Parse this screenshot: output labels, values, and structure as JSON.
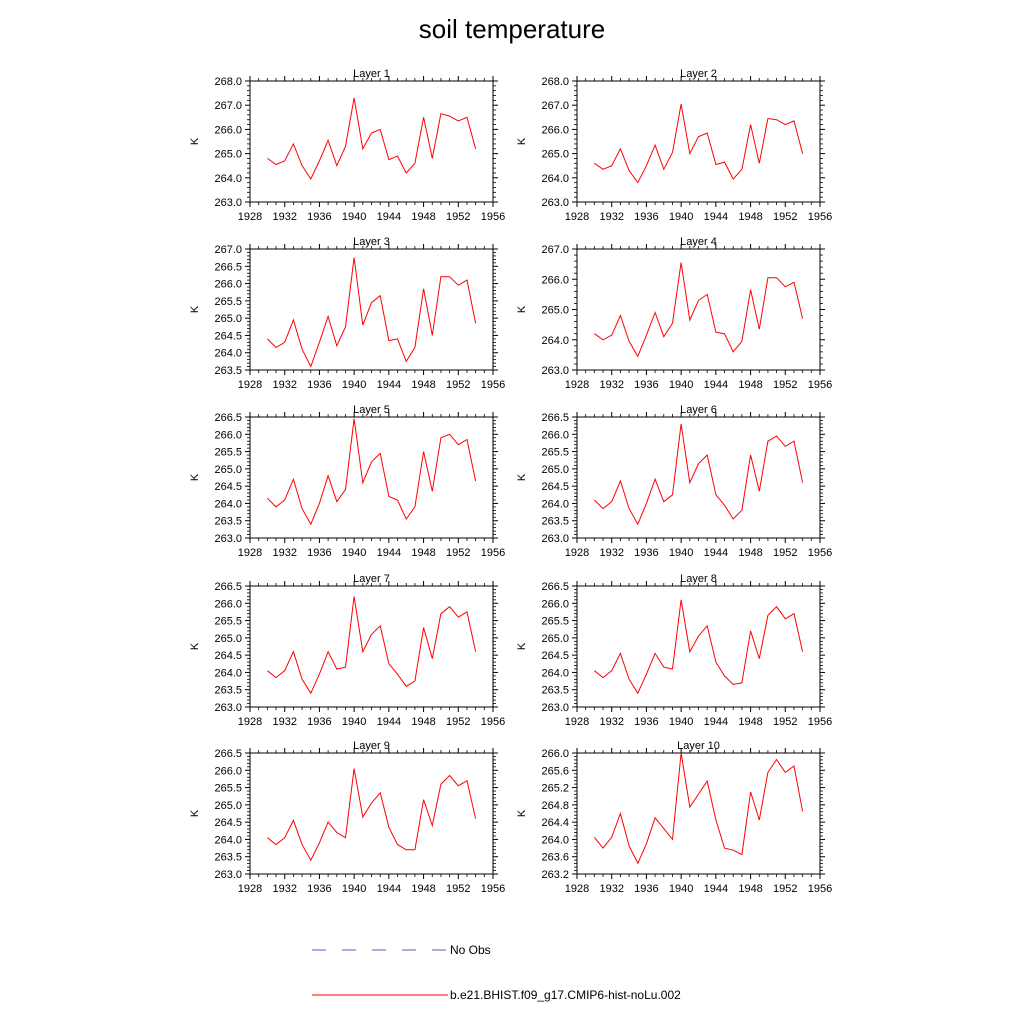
{
  "title": "soil temperature",
  "chart_data": [
    {
      "type": "line",
      "title": "Layer 1",
      "ylabel": "K",
      "xlim": [
        1928,
        1956
      ],
      "ylim": [
        263.0,
        268.0
      ],
      "x_ticks": [
        1928,
        1932,
        1936,
        1940,
        1944,
        1948,
        1952,
        1956
      ],
      "y_ticks": [
        "263.0",
        "264.0",
        "265.0",
        "266.0",
        "267.0",
        "268.0"
      ],
      "series": [
        {
          "name": "b.e21.BHIST.f09_g17.CMIP6-hist-noLu.002",
          "color": "#ff0000",
          "x": [
            1930,
            1931,
            1932,
            1933,
            1934,
            1935,
            1936,
            1937,
            1938,
            1939,
            1940,
            1941,
            1942,
            1943,
            1944,
            1945,
            1946,
            1947,
            1948,
            1949,
            1950,
            1951,
            1952,
            1953,
            1954
          ],
          "y": [
            264.8,
            264.55,
            264.7,
            265.4,
            264.5,
            263.95,
            264.7,
            265.55,
            264.5,
            265.3,
            267.3,
            265.2,
            265.85,
            266.0,
            264.75,
            264.9,
            264.2,
            264.6,
            266.5,
            264.8,
            266.65,
            266.55,
            266.35,
            266.5,
            265.2
          ]
        }
      ]
    },
    {
      "type": "line",
      "title": "Layer 2",
      "ylabel": "K",
      "xlim": [
        1928,
        1956
      ],
      "ylim": [
        263.0,
        268.0
      ],
      "x_ticks": [
        1928,
        1932,
        1936,
        1940,
        1944,
        1948,
        1952,
        1956
      ],
      "y_ticks": [
        "263.0",
        "264.0",
        "265.0",
        "266.0",
        "267.0",
        "268.0"
      ],
      "series": [
        {
          "name": "b.e21.BHIST.f09_g17.CMIP6-hist-noLu.002",
          "color": "#ff0000",
          "x": [
            1930,
            1931,
            1932,
            1933,
            1934,
            1935,
            1936,
            1937,
            1938,
            1939,
            1940,
            1941,
            1942,
            1943,
            1944,
            1945,
            1946,
            1947,
            1948,
            1949,
            1950,
            1951,
            1952,
            1953,
            1954
          ],
          "y": [
            264.6,
            264.35,
            264.5,
            265.2,
            264.3,
            263.8,
            264.5,
            265.35,
            264.35,
            265.05,
            267.05,
            265.0,
            265.7,
            265.85,
            264.55,
            264.65,
            263.95,
            264.35,
            266.2,
            264.6,
            266.45,
            266.4,
            266.2,
            266.35,
            265.0
          ]
        }
      ]
    },
    {
      "type": "line",
      "title": "Layer 3",
      "ylabel": "K",
      "xlim": [
        1928,
        1956
      ],
      "ylim": [
        263.5,
        267.0
      ],
      "x_ticks": [
        1928,
        1932,
        1936,
        1940,
        1944,
        1948,
        1952,
        1956
      ],
      "y_ticks": [
        "263.5",
        "264.0",
        "264.5",
        "265.0",
        "265.5",
        "266.0",
        "266.5",
        "267.0"
      ],
      "series": [
        {
          "name": "b.e21.BHIST.f09_g17.CMIP6-hist-noLu.002",
          "color": "#ff0000",
          "x": [
            1930,
            1931,
            1932,
            1933,
            1934,
            1935,
            1936,
            1937,
            1938,
            1939,
            1940,
            1941,
            1942,
            1943,
            1944,
            1945,
            1946,
            1947,
            1948,
            1949,
            1950,
            1951,
            1952,
            1953,
            1954
          ],
          "y": [
            264.4,
            264.15,
            264.3,
            264.95,
            264.1,
            263.6,
            264.3,
            265.05,
            264.2,
            264.75,
            266.75,
            264.8,
            265.45,
            265.65,
            264.35,
            264.4,
            263.75,
            264.15,
            265.85,
            264.5,
            266.2,
            266.2,
            265.95,
            266.1,
            264.85
          ]
        }
      ]
    },
    {
      "type": "line",
      "title": "Layer 4",
      "ylabel": "K",
      "xlim": [
        1928,
        1956
      ],
      "ylim": [
        263.0,
        267.0
      ],
      "x_ticks": [
        1928,
        1932,
        1936,
        1940,
        1944,
        1948,
        1952,
        1956
      ],
      "y_ticks": [
        "263.0",
        "264.0",
        "265.0",
        "266.0",
        "267.0"
      ],
      "series": [
        {
          "name": "b.e21.BHIST.f09_g17.CMIP6-hist-noLu.002",
          "color": "#ff0000",
          "x": [
            1930,
            1931,
            1932,
            1933,
            1934,
            1935,
            1936,
            1937,
            1938,
            1939,
            1940,
            1941,
            1942,
            1943,
            1944,
            1945,
            1946,
            1947,
            1948,
            1949,
            1950,
            1951,
            1952,
            1953,
            1954
          ],
          "y": [
            264.2,
            264.0,
            264.15,
            264.8,
            263.95,
            263.45,
            264.15,
            264.9,
            264.1,
            264.55,
            266.55,
            264.65,
            265.3,
            265.5,
            264.25,
            264.2,
            263.6,
            263.95,
            265.65,
            264.35,
            266.05,
            266.05,
            265.75,
            265.9,
            264.7
          ]
        }
      ]
    },
    {
      "type": "line",
      "title": "Layer 5",
      "ylabel": "K",
      "xlim": [
        1928,
        1956
      ],
      "ylim": [
        263.0,
        266.5
      ],
      "x_ticks": [
        1928,
        1932,
        1936,
        1940,
        1944,
        1948,
        1952,
        1956
      ],
      "y_ticks": [
        "263.0",
        "263.5",
        "264.0",
        "264.5",
        "265.0",
        "265.5",
        "266.0",
        "266.5"
      ],
      "series": [
        {
          "name": "b.e21.BHIST.f09_g17.CMIP6-hist-noLu.002",
          "color": "#ff0000",
          "x": [
            1930,
            1931,
            1932,
            1933,
            1934,
            1935,
            1936,
            1937,
            1938,
            1939,
            1940,
            1941,
            1942,
            1943,
            1944,
            1945,
            1946,
            1947,
            1948,
            1949,
            1950,
            1951,
            1952,
            1953,
            1954
          ],
          "y": [
            264.15,
            263.9,
            264.1,
            264.7,
            263.85,
            263.4,
            264.0,
            264.8,
            264.05,
            264.4,
            266.45,
            264.6,
            265.2,
            265.45,
            264.2,
            264.1,
            263.55,
            263.9,
            265.5,
            264.35,
            265.9,
            266.0,
            265.7,
            265.85,
            264.65
          ]
        }
      ]
    },
    {
      "type": "line",
      "title": "Layer 6",
      "ylabel": "K",
      "xlim": [
        1928,
        1956
      ],
      "ylim": [
        263.0,
        266.5
      ],
      "x_ticks": [
        1928,
        1932,
        1936,
        1940,
        1944,
        1948,
        1952,
        1956
      ],
      "y_ticks": [
        "263.0",
        "263.5",
        "264.0",
        "264.5",
        "265.0",
        "265.5",
        "266.0",
        "266.5"
      ],
      "series": [
        {
          "name": "b.e21.BHIST.f09_g17.CMIP6-hist-noLu.002",
          "color": "#ff0000",
          "x": [
            1930,
            1931,
            1932,
            1933,
            1934,
            1935,
            1936,
            1937,
            1938,
            1939,
            1940,
            1941,
            1942,
            1943,
            1944,
            1945,
            1946,
            1947,
            1948,
            1949,
            1950,
            1951,
            1952,
            1953,
            1954
          ],
          "y": [
            264.1,
            263.85,
            264.05,
            264.65,
            263.85,
            263.4,
            264.0,
            264.7,
            264.05,
            264.25,
            266.3,
            264.6,
            265.15,
            265.4,
            264.25,
            263.95,
            263.55,
            263.8,
            265.4,
            264.35,
            265.8,
            265.95,
            265.65,
            265.8,
            264.6
          ]
        }
      ]
    },
    {
      "type": "line",
      "title": "Layer 7",
      "ylabel": "K",
      "xlim": [
        1928,
        1956
      ],
      "ylim": [
        263.0,
        266.5
      ],
      "x_ticks": [
        1928,
        1932,
        1936,
        1940,
        1944,
        1948,
        1952,
        1956
      ],
      "y_ticks": [
        "263.0",
        "263.5",
        "264.0",
        "264.5",
        "265.0",
        "265.5",
        "266.0",
        "266.5"
      ],
      "series": [
        {
          "name": "b.e21.BHIST.f09_g17.CMIP6-hist-noLu.002",
          "color": "#ff0000",
          "x": [
            1930,
            1931,
            1932,
            1933,
            1934,
            1935,
            1936,
            1937,
            1938,
            1939,
            1940,
            1941,
            1942,
            1943,
            1944,
            1945,
            1946,
            1947,
            1948,
            1949,
            1950,
            1951,
            1952,
            1953,
            1954
          ],
          "y": [
            264.05,
            263.85,
            264.05,
            264.6,
            263.8,
            263.4,
            263.95,
            264.6,
            264.1,
            264.15,
            266.2,
            264.6,
            265.1,
            265.35,
            264.25,
            263.95,
            263.6,
            263.75,
            265.3,
            264.4,
            265.7,
            265.9,
            265.6,
            265.75,
            264.6
          ]
        }
      ]
    },
    {
      "type": "line",
      "title": "Layer 8",
      "ylabel": "K",
      "xlim": [
        1928,
        1956
      ],
      "ylim": [
        263.0,
        266.5
      ],
      "x_ticks": [
        1928,
        1932,
        1936,
        1940,
        1944,
        1948,
        1952,
        1956
      ],
      "y_ticks": [
        "263.0",
        "263.5",
        "264.0",
        "264.5",
        "265.0",
        "265.5",
        "266.0",
        "266.5"
      ],
      "series": [
        {
          "name": "b.e21.BHIST.f09_g17.CMIP6-hist-noLu.002",
          "color": "#ff0000",
          "x": [
            1930,
            1931,
            1932,
            1933,
            1934,
            1935,
            1936,
            1937,
            1938,
            1939,
            1940,
            1941,
            1942,
            1943,
            1944,
            1945,
            1946,
            1947,
            1948,
            1949,
            1950,
            1951,
            1952,
            1953,
            1954
          ],
          "y": [
            264.05,
            263.85,
            264.05,
            264.55,
            263.8,
            263.4,
            263.95,
            264.55,
            264.15,
            264.1,
            266.1,
            264.6,
            265.05,
            265.35,
            264.3,
            263.9,
            263.65,
            263.7,
            265.2,
            264.4,
            265.65,
            265.9,
            265.55,
            265.7,
            264.6
          ]
        }
      ]
    },
    {
      "type": "line",
      "title": "Layer 9",
      "ylabel": "K",
      "xlim": [
        1928,
        1956
      ],
      "ylim": [
        263.0,
        266.5
      ],
      "x_ticks": [
        1928,
        1932,
        1936,
        1940,
        1944,
        1948,
        1952,
        1956
      ],
      "y_ticks": [
        "263.0",
        "263.5",
        "264.0",
        "264.5",
        "265.0",
        "265.5",
        "266.0",
        "266.5"
      ],
      "series": [
        {
          "name": "b.e21.BHIST.f09_g17.CMIP6-hist-noLu.002",
          "color": "#ff0000",
          "x": [
            1930,
            1931,
            1932,
            1933,
            1934,
            1935,
            1936,
            1937,
            1938,
            1939,
            1940,
            1941,
            1942,
            1943,
            1944,
            1945,
            1946,
            1947,
            1948,
            1949,
            1950,
            1951,
            1952,
            1953,
            1954
          ],
          "y": [
            264.05,
            263.85,
            264.05,
            264.55,
            263.85,
            263.4,
            263.9,
            264.5,
            264.2,
            264.05,
            266.05,
            264.65,
            265.05,
            265.35,
            264.35,
            263.85,
            263.7,
            263.7,
            265.15,
            264.4,
            265.6,
            265.85,
            265.55,
            265.7,
            264.6
          ]
        }
      ]
    },
    {
      "type": "line",
      "title": "Layer 10",
      "ylabel": "K",
      "xlim": [
        1928,
        1956
      ],
      "ylim": [
        263.2,
        266.0
      ],
      "x_ticks": [
        1928,
        1932,
        1936,
        1940,
        1944,
        1948,
        1952,
        1956
      ],
      "y_ticks": [
        "263.2",
        "263.6",
        "264.0",
        "264.4",
        "264.8",
        "265.2",
        "265.6",
        "266.0"
      ],
      "series": [
        {
          "name": "b.e21.BHIST.f09_g17.CMIP6-hist-noLu.002",
          "color": "#ff0000",
          "x": [
            1930,
            1931,
            1932,
            1933,
            1934,
            1935,
            1936,
            1937,
            1938,
            1939,
            1940,
            1941,
            1942,
            1943,
            1944,
            1945,
            1946,
            1947,
            1948,
            1949,
            1950,
            1951,
            1952,
            1953,
            1954
          ],
          "y": [
            264.05,
            263.8,
            264.05,
            264.6,
            263.85,
            263.45,
            263.9,
            264.5,
            264.25,
            264.0,
            266.0,
            264.75,
            265.05,
            265.35,
            264.45,
            263.8,
            263.75,
            263.65,
            265.1,
            264.45,
            265.55,
            265.85,
            265.55,
            265.7,
            264.65
          ]
        }
      ]
    }
  ],
  "legend": {
    "items": [
      {
        "label": "No Obs",
        "color": "#5555cc",
        "style": "dashed"
      },
      {
        "label": "b.e21.BHIST.f09_g17.CMIP6-hist-noLu.002",
        "color": "#ff0000",
        "style": "solid"
      }
    ]
  }
}
